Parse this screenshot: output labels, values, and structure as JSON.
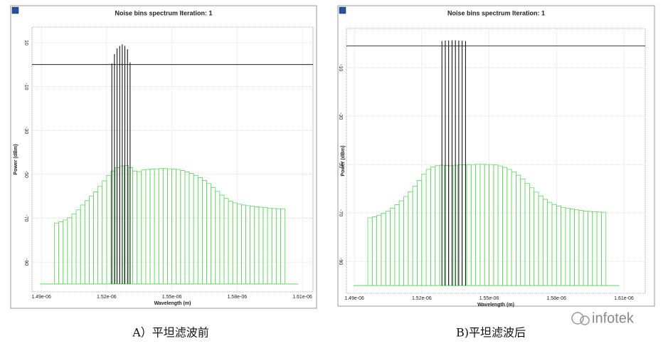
{
  "chart_data": [
    {
      "type": "spectrum",
      "title": "Noise bins spectrum Iteration: 1",
      "xlabel": "Wavelength (m)",
      "ylabel": "Power (dBm)",
      "xlim": [
        1.4857e-06,
        1.6149e-06
      ],
      "xticks": [
        {
          "value": 1.49e-06,
          "label": "1.49e-06"
        },
        {
          "value": 1.52e-06,
          "label": "1.52e-06"
        },
        {
          "value": 1.55e-06,
          "label": "1.55e-06"
        },
        {
          "value": 1.58e-06,
          "label": "1.58e-06"
        },
        {
          "value": 1.61e-06,
          "label": "1.61e-06"
        }
      ],
      "ylim": [
        -103.6,
        17.1
      ],
      "yticks": [
        10,
        -10,
        -30,
        -50,
        -70,
        -90
      ],
      "grid": true,
      "reference_level": 0,
      "noise_floor": -100,
      "noise": {
        "color": "#5fd35f",
        "x": [
          1.496e-06,
          1.498e-06,
          1.5e-06,
          1.502e-06,
          1.504e-06,
          1.506e-06,
          1.508e-06,
          1.51e-06,
          1.512e-06,
          1.514e-06,
          1.516e-06,
          1.518e-06,
          1.52e-06,
          1.522e-06,
          1.524e-06,
          1.526e-06,
          1.528e-06,
          1.53e-06,
          1.532e-06,
          1.534e-06,
          1.536e-06,
          1.538e-06,
          1.54e-06,
          1.542e-06,
          1.544e-06,
          1.546e-06,
          1.548e-06,
          1.55e-06,
          1.552e-06,
          1.554e-06,
          1.556e-06,
          1.558e-06,
          1.56e-06,
          1.562e-06,
          1.564e-06,
          1.566e-06,
          1.568e-06,
          1.57e-06,
          1.572e-06,
          1.574e-06,
          1.576e-06,
          1.578e-06,
          1.58e-06,
          1.582e-06,
          1.584e-06,
          1.586e-06,
          1.588e-06,
          1.59e-06,
          1.592e-06,
          1.594e-06,
          1.596e-06,
          1.598e-06,
          1.6e-06
        ],
        "values": [
          -72.2,
          -71.6,
          -70.8,
          -69.8,
          -68.0,
          -66.2,
          -64.0,
          -62.0,
          -60.0,
          -58.0,
          -55.5,
          -53.0,
          -50.5,
          -48.5,
          -47.0,
          -46.2,
          -46.0,
          -47.0,
          -48.5,
          -48.8,
          -48.0,
          -47.8,
          -47.6,
          -47.5,
          -47.4,
          -47.4,
          -47.5,
          -47.6,
          -47.8,
          -48.3,
          -48.9,
          -49.6,
          -50.5,
          -51.5,
          -52.8,
          -54.2,
          -56.0,
          -57.8,
          -59.5,
          -61.0,
          -62.2,
          -63.0,
          -63.6,
          -64.0,
          -64.3,
          -64.6,
          -64.8,
          -65.0,
          -65.2,
          -65.4,
          -65.6,
          -65.7,
          -65.8
        ]
      },
      "signal": {
        "color": "#000000",
        "x": [
          1.5224e-06,
          1.5236e-06,
          1.5248e-06,
          1.526e-06,
          1.5272e-06,
          1.5284e-06,
          1.5296e-06,
          1.5308e-06
        ],
        "values": [
          0.5,
          4.8,
          7.4,
          8.5,
          9.2,
          8.5,
          7.0,
          1.0
        ]
      },
      "caption": "A）平坦滤波前"
    },
    {
      "type": "spectrum",
      "title": "Noise bins spectrum Iteration: 1",
      "xlabel": "Wavelength (m)",
      "ylabel": "Power (dBm)",
      "xlim": [
        1.4865e-06,
        1.6195e-06
      ],
      "xticks": [
        {
          "value": 1.49e-06,
          "label": "1.49e-06"
        },
        {
          "value": 1.52e-06,
          "label": "1.52e-06"
        },
        {
          "value": 1.55e-06,
          "label": "1.55e-06"
        },
        {
          "value": 1.58e-06,
          "label": "1.58e-06"
        },
        {
          "value": 1.61e-06,
          "label": "1.61e-06"
        }
      ],
      "ylim": [
        -103.2,
        6.2
      ],
      "yticks": [
        -10,
        -30,
        -50,
        -70,
        -90
      ],
      "grid": true,
      "reference_level": -1,
      "noise_floor": -100,
      "noise": {
        "color": "#5fd35f",
        "x": [
          1.496e-06,
          1.498e-06,
          1.5e-06,
          1.502e-06,
          1.504e-06,
          1.506e-06,
          1.508e-06,
          1.51e-06,
          1.512e-06,
          1.514e-06,
          1.516e-06,
          1.518e-06,
          1.52e-06,
          1.522e-06,
          1.524e-06,
          1.526e-06,
          1.528e-06,
          1.53e-06,
          1.532e-06,
          1.534e-06,
          1.536e-06,
          1.538e-06,
          1.54e-06,
          1.542e-06,
          1.544e-06,
          1.546e-06,
          1.548e-06,
          1.55e-06,
          1.552e-06,
          1.554e-06,
          1.556e-06,
          1.558e-06,
          1.56e-06,
          1.562e-06,
          1.564e-06,
          1.566e-06,
          1.568e-06,
          1.57e-06,
          1.572e-06,
          1.574e-06,
          1.576e-06,
          1.578e-06,
          1.58e-06,
          1.582e-06,
          1.584e-06,
          1.586e-06,
          1.588e-06,
          1.59e-06,
          1.592e-06,
          1.594e-06,
          1.596e-06,
          1.598e-06,
          1.6e-06
        ],
        "values": [
          -72.0,
          -71.6,
          -71.0,
          -70.2,
          -69.2,
          -68.0,
          -66.6,
          -65.0,
          -63.2,
          -61.2,
          -59.0,
          -56.6,
          -54.0,
          -52.0,
          -51.0,
          -50.5,
          -50.3,
          -50.4,
          -50.5,
          -50.3,
          -50.2,
          -50.1,
          -50.0,
          -50.0,
          -49.9,
          -49.9,
          -50.0,
          -50.0,
          -50.2,
          -50.6,
          -51.2,
          -52.0,
          -53.0,
          -54.4,
          -56.0,
          -57.8,
          -59.6,
          -61.4,
          -63.0,
          -64.4,
          -65.6,
          -66.5,
          -67.2,
          -67.7,
          -68.1,
          -68.4,
          -68.7,
          -69.0,
          -69.2,
          -69.4,
          -69.5,
          -69.6,
          -69.7
        ]
      },
      "signal": {
        "color": "#000000",
        "x": [
          1.529e-06,
          1.5305e-06,
          1.532e-06,
          1.5335e-06,
          1.535e-06,
          1.5365e-06,
          1.538e-06,
          1.5395e-06
        ],
        "values": [
          1.0,
          1.2,
          1.2,
          1.3,
          1.3,
          1.2,
          1.2,
          1.0
        ]
      },
      "caption": "B)平坦滤波后"
    }
  ],
  "watermark": "infotek"
}
